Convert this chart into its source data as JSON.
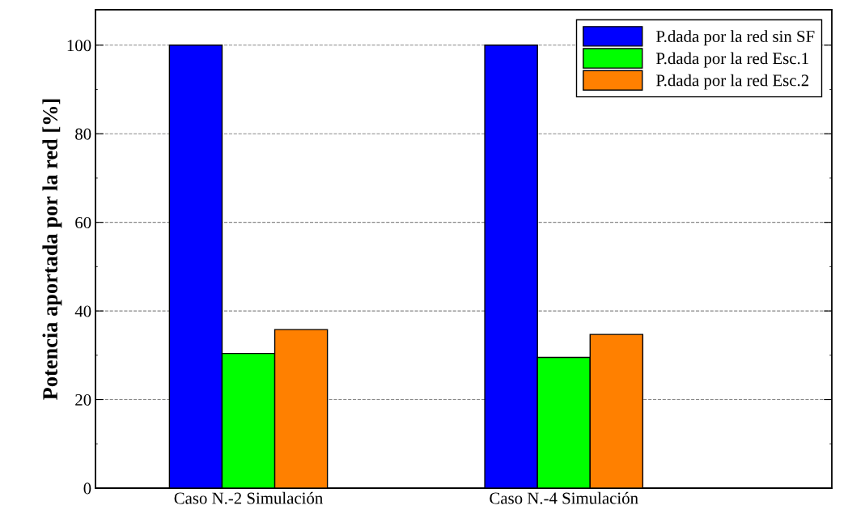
{
  "chart_data": {
    "type": "bar",
    "ylabel": "Potencia aportada por la red [%]",
    "categories": [
      "Caso N.-2 Simulación",
      "Caso N.-4 Simulación"
    ],
    "series": [
      {
        "name": "P.dada por la red sin SF",
        "color": "#0000ff",
        "values": [
          100,
          100
        ]
      },
      {
        "name": "P.dada por la red Esc.1",
        "color": "#00ff00",
        "values": [
          30.4,
          29.5
        ]
      },
      {
        "name": "P.dada por la red Esc.2",
        "color": "#ff8000",
        "values": [
          35.8,
          34.7
        ]
      }
    ],
    "ylim": [
      0,
      108
    ],
    "yticks": [
      0,
      20,
      40,
      60,
      80,
      100
    ],
    "grid": "y",
    "legend": "top right"
  }
}
